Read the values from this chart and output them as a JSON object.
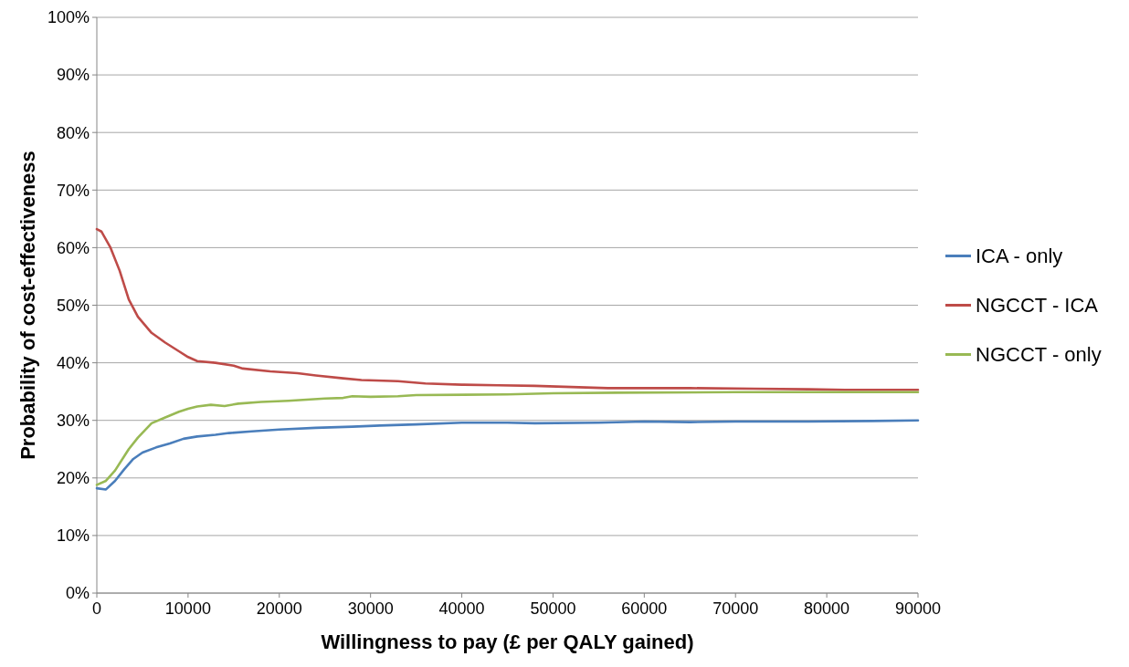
{
  "chart_data": {
    "type": "line",
    "xlabel": "Willingness to pay (£ per QALY gained)",
    "ylabel": "Probability of cost-effectiveness",
    "xlim": [
      0,
      90000
    ],
    "xticks": [
      0,
      10000,
      20000,
      30000,
      40000,
      50000,
      60000,
      70000,
      80000,
      90000
    ],
    "ylim": [
      0,
      100
    ],
    "yticks": [
      {
        "value": 0,
        "label": "0%"
      },
      {
        "value": 10,
        "label": "10%"
      },
      {
        "value": 20,
        "label": "20%"
      },
      {
        "value": 30,
        "label": "30%"
      },
      {
        "value": 40,
        "label": "40%"
      },
      {
        "value": 50,
        "label": "50%"
      },
      {
        "value": 60,
        "label": "60%"
      },
      {
        "value": 70,
        "label": "70%"
      },
      {
        "value": 80,
        "label": "80%"
      },
      {
        "value": 90,
        "label": "90%"
      },
      {
        "value": 100,
        "label": "100%"
      }
    ],
    "grid": "y",
    "legend": "right",
    "marker": "none",
    "line_style": "solid",
    "series": [
      {
        "name": "ICA - only",
        "color": "#4a7ebb",
        "x": [
          0,
          1000,
          2000,
          3000,
          4000,
          5000,
          6500,
          8000,
          9500,
          11000,
          13000,
          14500,
          17000,
          20000,
          24000,
          28000,
          31000,
          35000,
          40000,
          45000,
          48000,
          55000,
          60000,
          65000,
          70000,
          78000,
          85000,
          90000
        ],
        "values": [
          18.2,
          18,
          19.5,
          21.5,
          23.3,
          24.4,
          25.3,
          26,
          26.8,
          27.2,
          27.5,
          27.8,
          28.1,
          28.4,
          28.7,
          28.9,
          29.1,
          29.3,
          29.6,
          29.6,
          29.5,
          29.6,
          29.8,
          29.7,
          29.8,
          29.8,
          29.9,
          30
        ]
      },
      {
        "name": "NGCCT - ICA",
        "color": "#be4b48",
        "x": [
          0,
          500,
          1500,
          2500,
          3500,
          4500,
          6000,
          7500,
          9000,
          10000,
          11000,
          13000,
          15000,
          16000,
          19000,
          22000,
          24000,
          27000,
          29000,
          33000,
          36000,
          40000,
          44000,
          48000,
          52000,
          56000,
          65000,
          72000,
          78000,
          82000,
          90000
        ],
        "values": [
          63.2,
          62.8,
          60,
          56,
          51,
          48,
          45.2,
          43.5,
          42,
          41,
          40.3,
          40,
          39.5,
          39,
          38.5,
          38.2,
          37.8,
          37.3,
          37,
          36.8,
          36.4,
          36.2,
          36.1,
          36,
          35.8,
          35.6,
          35.6,
          35.5,
          35.4,
          35.3,
          35.3
        ]
      },
      {
        "name": "NGCCT - only",
        "color": "#98b954",
        "x": [
          0,
          1000,
          2000,
          3500,
          4500,
          6000,
          7500,
          9000,
          10000,
          11000,
          12500,
          14000,
          15500,
          18000,
          21000,
          25000,
          27000,
          28000,
          30000,
          33000,
          35000,
          45000,
          50000,
          57000,
          70000,
          90000
        ],
        "values": [
          18.8,
          19.5,
          21.3,
          25,
          27,
          29.5,
          30.5,
          31.5,
          32,
          32.4,
          32.7,
          32.5,
          32.9,
          33.2,
          33.4,
          33.8,
          33.9,
          34.2,
          34.1,
          34.2,
          34.4,
          34.5,
          34.7,
          34.8,
          34.9,
          34.9
        ]
      }
    ]
  }
}
